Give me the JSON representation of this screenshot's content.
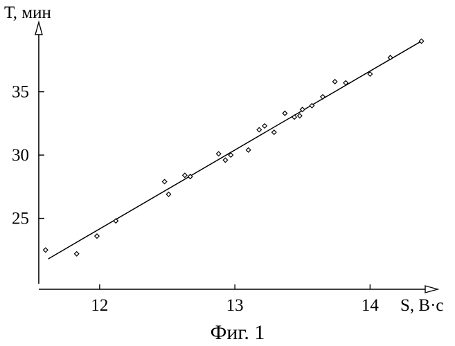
{
  "chart_data": {
    "type": "scatter",
    "title": "",
    "caption": "Фиг. 1",
    "xlabel": "S, В·с",
    "ylabel": "Т, мин",
    "xlim": [
      11.55,
      14.5
    ],
    "ylim": [
      19.4,
      40.5
    ],
    "xticks": [
      12,
      13,
      14
    ],
    "yticks": [
      25,
      30,
      35
    ],
    "grid": false,
    "series": [
      {
        "x": [
          11.6,
          11.83,
          11.98,
          12.12,
          12.48,
          12.51,
          12.63,
          12.67,
          12.88,
          12.93,
          12.97,
          13.1,
          13.18,
          13.22,
          13.29,
          13.37,
          13.44,
          13.48,
          13.5,
          13.57,
          13.65,
          13.74,
          13.82,
          14.0,
          14.15,
          14.38
        ],
        "y": [
          22.5,
          22.2,
          23.6,
          24.8,
          27.9,
          26.9,
          28.4,
          28.3,
          30.1,
          29.6,
          30.0,
          30.4,
          32.0,
          32.3,
          31.8,
          33.3,
          33.0,
          33.1,
          33.6,
          33.9,
          34.6,
          35.8,
          35.7,
          36.4,
          37.7,
          39.0
        ]
      }
    ],
    "fit_line": {
      "x": [
        11.62,
        14.38
      ],
      "y": [
        21.8,
        39.0
      ]
    }
  }
}
